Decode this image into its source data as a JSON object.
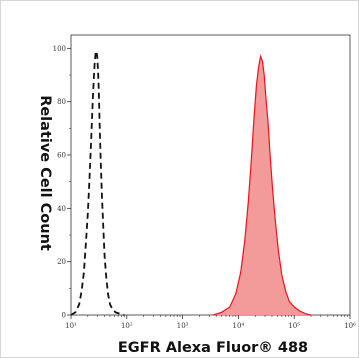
{
  "chart_data": {
    "type": "area",
    "title": "",
    "xlabel": "EGFR Alexa Fluor® 488",
    "ylabel": "Relative Cell Count",
    "x_scale": "log",
    "xlim": [
      10,
      1000000
    ],
    "ylim": [
      0,
      105
    ],
    "x_tick_labels": [
      "10¹",
      "10²",
      "10³",
      "10⁴",
      "10⁵",
      "10⁶"
    ],
    "y_tick_labels": [
      "0",
      "20",
      "40",
      "60",
      "80",
      "100"
    ],
    "grid": false,
    "legend": "none",
    "series": [
      {
        "style": "dashed-line",
        "color": "#111111",
        "x": [
          10,
          12,
          14,
          15.5,
          17,
          18.5,
          20,
          21.5,
          23,
          24.5,
          25.5,
          26.5,
          27.5,
          28.5,
          29.5,
          30.5,
          31.5,
          32.5,
          34,
          36,
          38,
          40,
          43,
          46,
          50,
          56,
          63,
          75,
          90
        ],
        "y": [
          0,
          1,
          4,
          9,
          16,
          27,
          38,
          52,
          66,
          80,
          88,
          94,
          98,
          99,
          97,
          92,
          84,
          72,
          58,
          44,
          32,
          22,
          14,
          8,
          4,
          2,
          1,
          0.5,
          0
        ]
      },
      {
        "style": "filled",
        "color": "#e8141e",
        "fill": "#f39a9a",
        "x": [
          3500,
          5000,
          7000,
          9000,
          11000,
          13000,
          15000,
          17000,
          19000,
          21000,
          23000,
          25000,
          27000,
          29000,
          31000,
          34000,
          37000,
          41000,
          46000,
          52000,
          60000,
          70000,
          82000,
          100000,
          125000,
          160000,
          200000
        ],
        "y": [
          0,
          1,
          3,
          8,
          16,
          28,
          42,
          58,
          74,
          86,
          93,
          97,
          95,
          90,
          82,
          72,
          60,
          47,
          35,
          24,
          15,
          9,
          5,
          3,
          1.5,
          0.5,
          0
        ]
      }
    ]
  }
}
